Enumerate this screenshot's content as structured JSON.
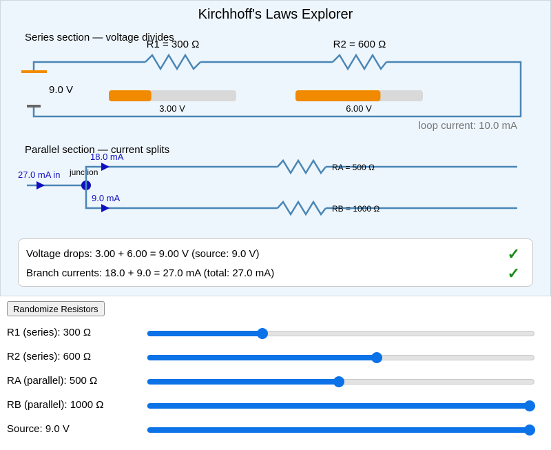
{
  "title": "Kirchhoff's Laws Explorer",
  "series": {
    "heading": "Series section — voltage divides",
    "source_label": "9.0 V",
    "r1_label": "R1 = 300 Ω",
    "r2_label": "R2 = 600 Ω",
    "r1_drop_label": "3.00 V",
    "r2_drop_label": "6.00 V",
    "r1_drop_fraction": 0.333,
    "r2_drop_fraction": 0.667,
    "loop_current": "loop current: 10.0 mA"
  },
  "parallel": {
    "heading": "Parallel section — current splits",
    "in_current": "27.0 mA in",
    "junction_label": "junction",
    "branch_a_current": "18.0 mA",
    "branch_b_current": "9.0 mA",
    "ra_label": "RA = 500 Ω",
    "rb_label": "RB = 1000 Ω"
  },
  "checks": {
    "voltage": "Voltage drops: 3.00 + 6.00 = 9.00 V   (source: 9.0 V)",
    "current": "Branch currents: 18.0 + 9.0 = 27.0 mA   (total: 27.0 mA)",
    "tick": "✓"
  },
  "controls": {
    "randomize_label": "Randomize Resistors",
    "sliders": [
      {
        "label": "R1 (series): 300 Ω",
        "fraction": 0.3
      },
      {
        "label": "R2 (series): 600 Ω",
        "fraction": 0.6
      },
      {
        "label": "RA (parallel): 500 Ω",
        "fraction": 0.5
      },
      {
        "label": "RB (parallel): 1000 Ω",
        "fraction": 1.0
      },
      {
        "label": "Source: 9.0 V",
        "fraction": 1.0
      }
    ]
  },
  "colors": {
    "wire": "#4a86b5",
    "bar_fill": "#f28a00",
    "bar_track": "#d9d9d9",
    "current_text": "#1010c0",
    "slider": "#0b72e7",
    "check": "#1a8a1a"
  }
}
